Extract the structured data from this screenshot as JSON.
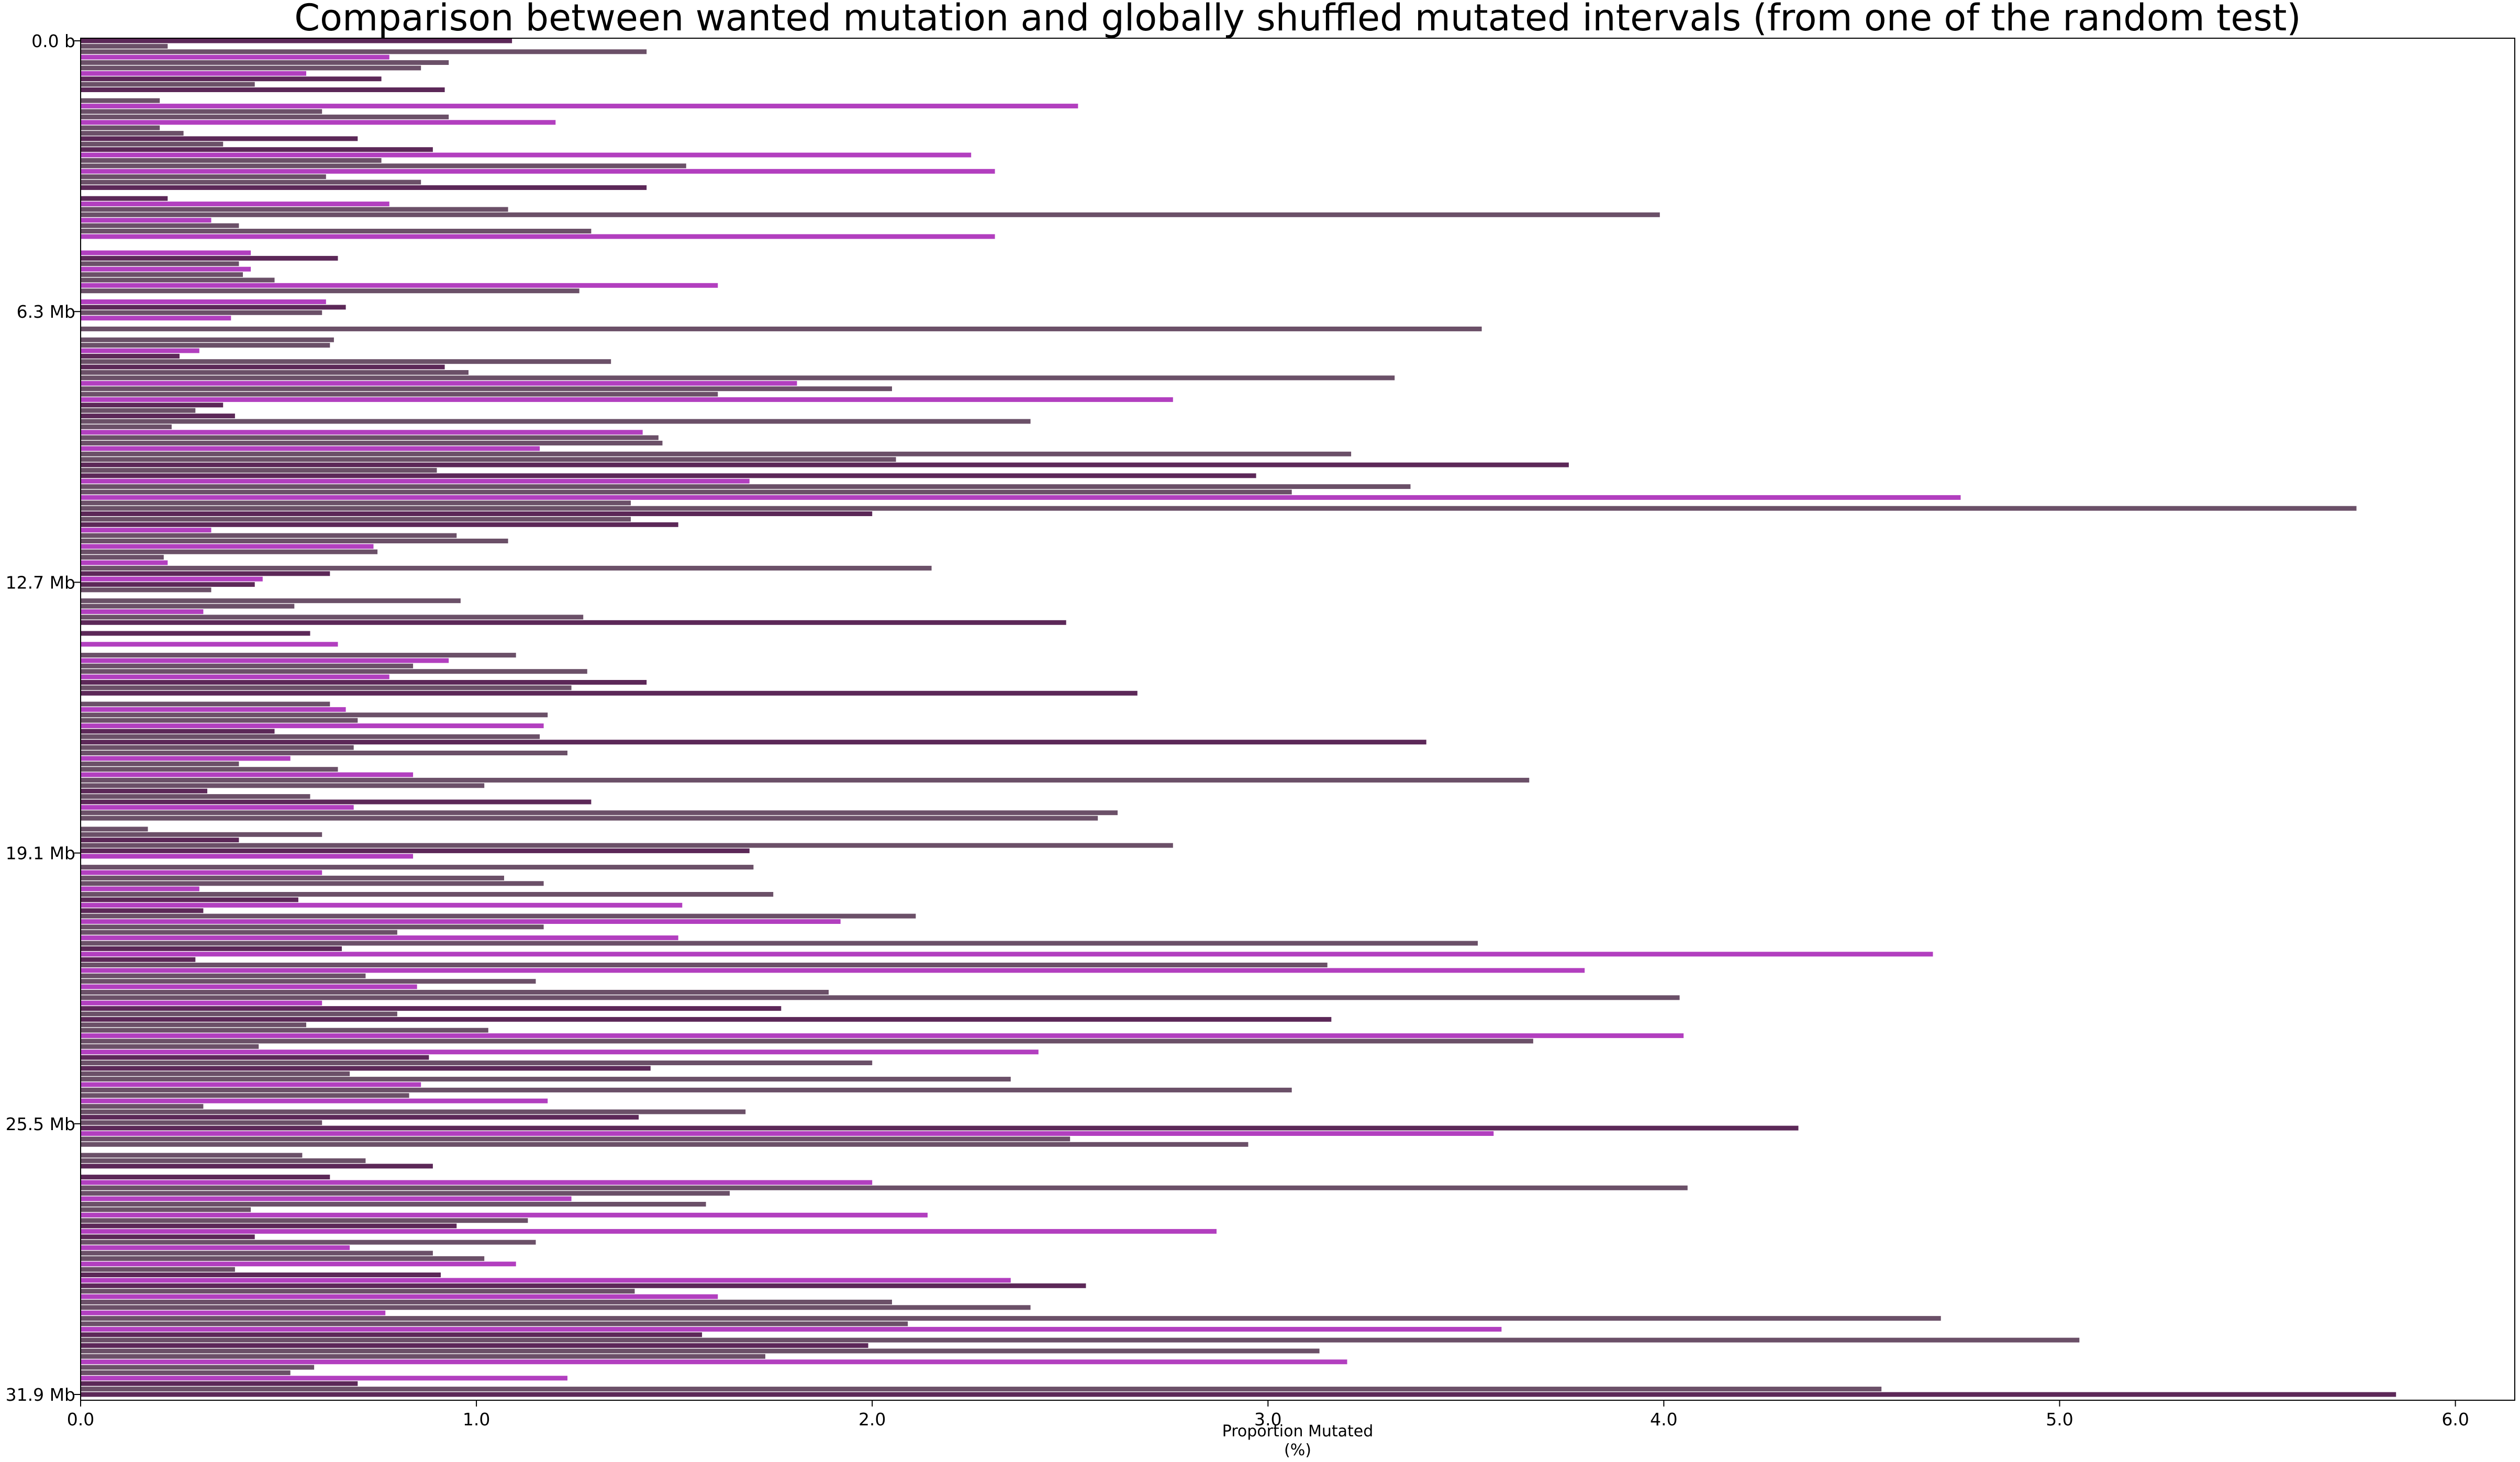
{
  "chart_data": {
    "type": "bar",
    "orientation": "horizontal",
    "title": "Comparison between wanted mutation and globally shuffled mutated intervals (from one of the random test)",
    "xlabel": "Proportion Mutated",
    "xlabel_unit": "(%)",
    "ylabel": "",
    "xlim": [
      0,
      6.15
    ],
    "xticks": [
      0.0,
      1.0,
      2.0,
      3.0,
      4.0,
      5.0,
      6.0
    ],
    "xtick_labels": [
      "0.0",
      "1.0",
      "2.0",
      "3.0",
      "4.0",
      "5.0",
      "6.0"
    ],
    "ytick_labels": [
      "0.0 b",
      "6.3 Mb",
      "12.7 Mb",
      "19.1 Mb",
      "25.5 Mb",
      "31.9 Mb"
    ],
    "grid": false,
    "legend": "none",
    "colors": {
      "shuffled": "#6b5068",
      "wanted": "#b23fbf",
      "overlap": "#5c2858"
    },
    "series": [
      {
        "values": [
          1.09,
          0.22,
          1.43,
          0.78,
          0.93,
          0.86,
          0.57,
          0.76,
          0.44,
          0.92,
          0,
          0.2,
          2.52,
          0.61,
          0.93,
          1.2,
          0.2,
          0.26,
          0.7,
          0.36,
          0.89,
          2.25,
          0.76,
          1.53,
          2.31,
          0.62,
          0.86,
          1.43,
          0,
          0.22,
          0.78,
          1.08,
          3.99,
          0.33,
          0.4,
          1.29,
          2.31,
          0,
          0,
          0.43,
          0.65,
          0.4,
          0.43,
          0.41,
          0.49,
          1.61,
          1.26,
          0,
          0.62,
          0.67,
          0.61,
          0.38,
          0,
          3.54,
          0,
          0.64,
          0.63,
          0.3,
          0.25,
          1.34,
          0.92,
          0.98,
          3.32,
          1.81,
          2.05,
          1.61,
          2.76,
          0.36,
          0.29,
          0.39,
          2.4,
          0.23,
          1.42,
          1.46,
          1.47,
          1.16,
          3.21,
          2.06,
          3.76,
          0.9,
          2.97,
          1.69,
          3.36,
          3.06,
          4.75,
          1.39,
          5.75,
          2.0,
          1.39,
          1.51,
          0.33,
          0.95,
          1.08,
          0.74,
          0.75,
          0.21,
          0.22,
          2.15,
          0.63,
          0.46,
          0.44,
          0.33,
          0,
          0.96,
          0.54,
          0.31,
          1.27,
          2.49,
          0,
          0.58,
          0,
          0.65,
          0,
          1.1,
          0.93,
          0.84,
          1.28,
          0.78,
          1.43,
          1.24,
          2.67,
          0,
          0.63,
          0.67,
          1.18,
          0.7,
          1.17,
          0.49,
          1.16,
          3.4,
          0.69,
          1.23,
          0.53,
          0.4,
          0.65,
          0.84,
          3.66,
          1.02,
          0.32,
          0.58,
          1.29,
          0.69,
          2.62,
          2.57,
          0,
          0.17,
          0.61,
          0.4,
          2.76,
          1.69,
          0.84,
          0,
          1.7,
          0.61,
          1.07,
          1.17,
          0.3,
          1.75,
          0.55,
          1.52,
          0.31,
          2.11,
          1.92,
          1.17,
          0.8,
          1.51,
          3.53,
          0.66,
          4.68,
          0.29,
          3.15,
          3.8,
          0.72,
          1.15,
          0.85,
          1.89,
          4.04,
          0.61,
          1.77,
          0.8,
          3.16,
          0.57,
          1.03,
          4.05,
          3.67,
          0.45,
          2.42,
          0.88,
          2.0,
          1.44,
          0.68,
          2.35,
          0.86,
          3.06,
          0.83,
          1.18,
          0.31,
          1.68,
          1.41,
          0.61,
          4.34,
          3.57,
          2.5,
          2.95,
          0,
          0.56,
          0.72,
          0.89,
          0,
          0.63,
          2.0,
          4.06,
          1.64,
          1.24,
          1.58,
          0.43,
          2.14,
          1.13,
          0.95,
          2.87,
          0.44,
          1.15,
          0.68,
          0.89,
          1.02,
          1.1,
          0.39,
          0.91,
          2.35,
          2.54,
          1.4,
          1.61,
          2.05,
          2.4,
          0.77,
          4.7,
          2.09,
          3.59,
          1.57,
          5.05,
          1.99,
          3.13,
          1.73,
          3.2,
          0.59,
          0.53,
          1.23,
          0.7,
          4.55,
          5.85
        ]
      }
    ]
  }
}
